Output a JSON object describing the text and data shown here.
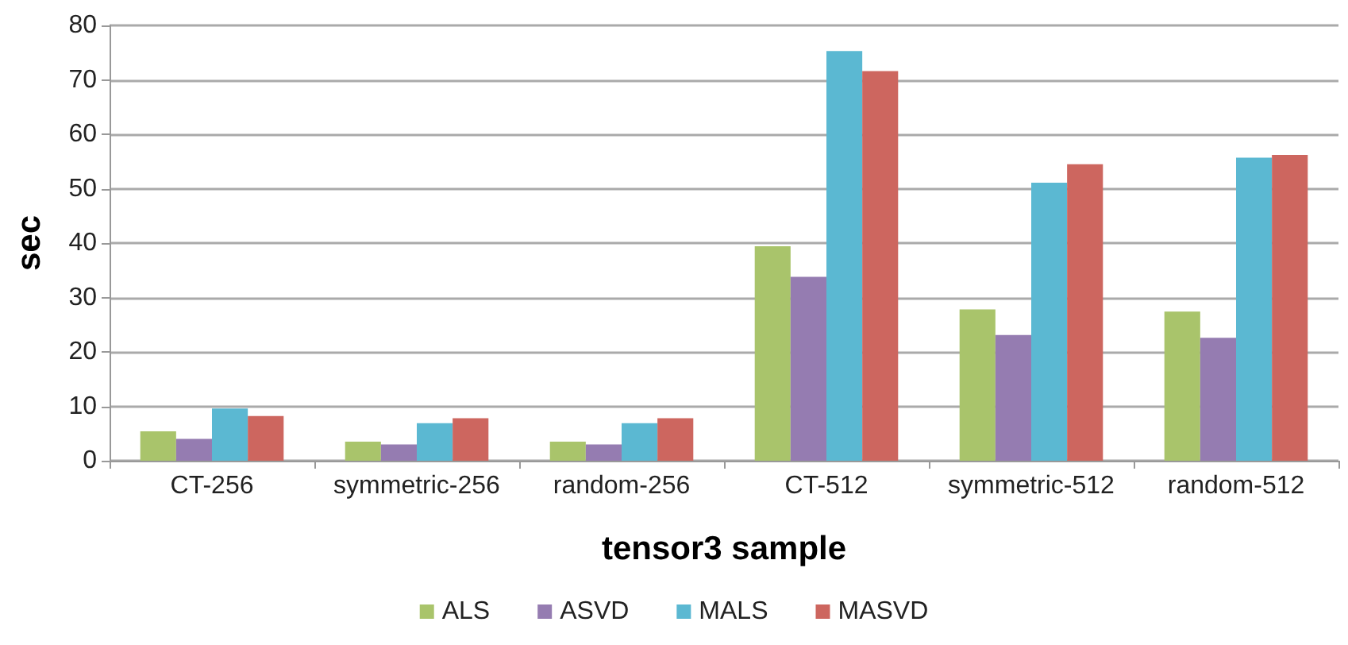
{
  "chart_data": {
    "type": "bar",
    "xlabel": "tensor3 sample",
    "ylabel": "sec",
    "categories": [
      "CT-256",
      "symmetric-256",
      "random-256",
      "CT-512",
      "symmetric-512",
      "random-512"
    ],
    "series": [
      {
        "name": "ALS",
        "color": "#a9c46b",
        "values": [
          5.4,
          3.5,
          3.5,
          39.4,
          27.8,
          27.4
        ]
      },
      {
        "name": "ASVD",
        "color": "#957cb1",
        "values": [
          4.0,
          3.0,
          3.0,
          33.8,
          23.1,
          22.6
        ]
      },
      {
        "name": "MALS",
        "color": "#5bb8d2",
        "values": [
          9.6,
          6.9,
          6.9,
          75.3,
          51.1,
          55.7
        ]
      },
      {
        "name": "MASVD",
        "color": "#cd665f",
        "values": [
          8.2,
          7.8,
          7.8,
          71.6,
          54.5,
          56.2
        ]
      }
    ],
    "ylim": [
      0,
      80
    ],
    "yticks": [
      0,
      10,
      20,
      30,
      40,
      50,
      60,
      70,
      80
    ],
    "grid": "y",
    "legend": "bottom"
  }
}
